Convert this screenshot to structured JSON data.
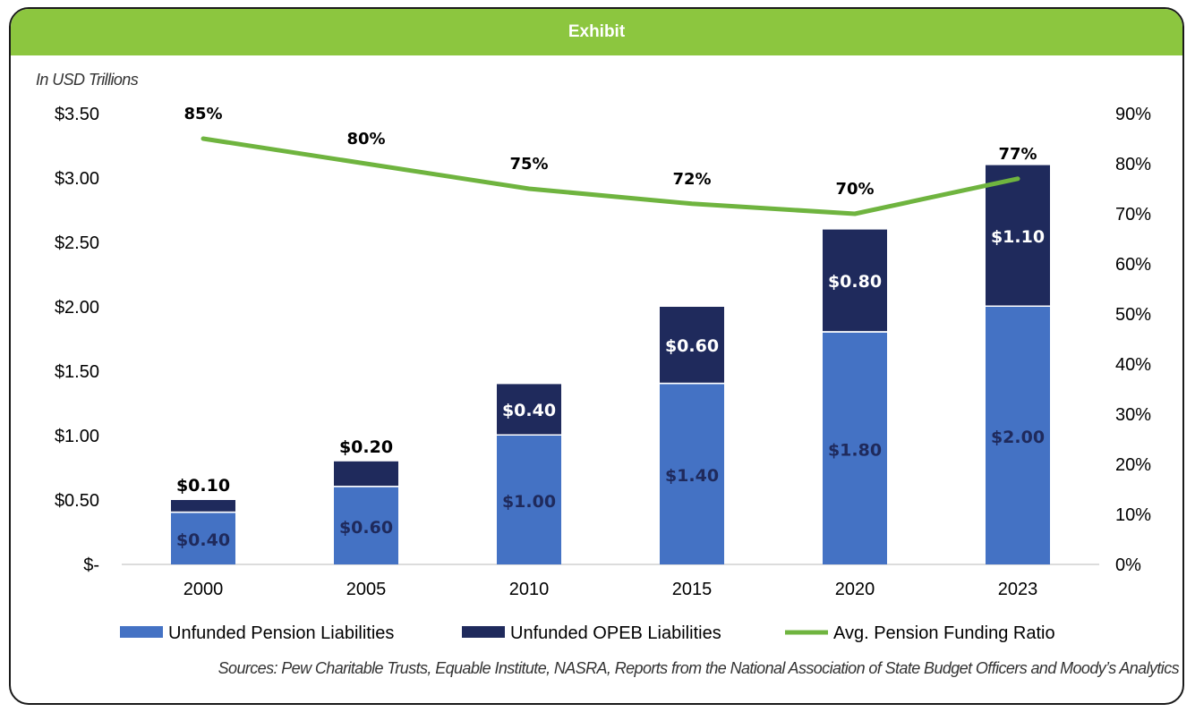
{
  "header": {
    "title": "Exhibit"
  },
  "chart_data": {
    "type": "bar",
    "stacked": true,
    "unit_note": "In USD Trillions",
    "categories": [
      "2000",
      "2005",
      "2010",
      "2015",
      "2020",
      "2023"
    ],
    "series": [
      {
        "name": "Unfunded Pension Liabilities",
        "color": "#4472c4",
        "values": [
          0.4,
          0.6,
          1.0,
          1.4,
          1.8,
          2.0
        ],
        "labels": [
          "$0.40",
          "$0.60",
          "$1.00",
          "$1.40",
          "$1.80",
          "$2.00"
        ]
      },
      {
        "name": "Unfunded OPEB Liabilities",
        "color": "#1f2a5c",
        "values": [
          0.1,
          0.2,
          0.4,
          0.6,
          0.8,
          1.1
        ],
        "labels": [
          "$0.10",
          "$0.20",
          "$0.40",
          "$0.60",
          "$0.80",
          "$1.10"
        ]
      },
      {
        "name": "Avg. Pension Funding Ratio",
        "type": "line",
        "axis": "right",
        "color": "#6fb43f",
        "values": [
          85,
          80,
          75,
          72,
          70,
          77
        ],
        "labels": [
          "85%",
          "80%",
          "75%",
          "72%",
          "70%",
          "77%"
        ]
      }
    ],
    "y_left": {
      "ylim": [
        0,
        3.5
      ],
      "ticks": [
        0,
        0.5,
        1.0,
        1.5,
        2.0,
        2.5,
        3.0,
        3.5
      ],
      "tick_labels": [
        "$-",
        "$0.50",
        "$1.00",
        "$1.50",
        "$2.00",
        "$2.50",
        "$3.00",
        "$3.50"
      ]
    },
    "y_right": {
      "ylim": [
        0,
        90
      ],
      "ticks": [
        0,
        10,
        20,
        30,
        40,
        50,
        60,
        70,
        80,
        90
      ],
      "tick_labels": [
        "0%",
        "10%",
        "20%",
        "30%",
        "40%",
        "50%",
        "60%",
        "70%",
        "80%",
        "90%"
      ]
    },
    "grid": false,
    "legend_position": "bottom"
  },
  "footer": {
    "source": "Sources: Pew Charitable Trusts, Equable Institute, NASRA, Reports from the National Association of State Budget Officers and Moody’s Analytics"
  }
}
